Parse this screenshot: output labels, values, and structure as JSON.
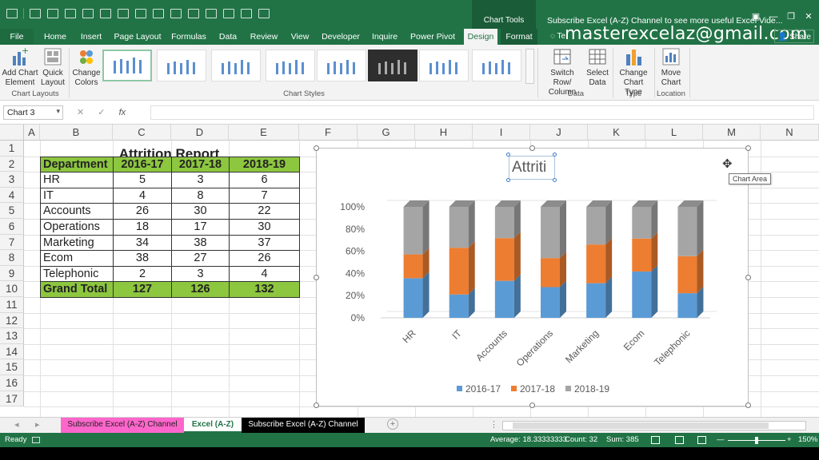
{
  "titlebar": {
    "context_group": "Chart Tools",
    "window_title": "Subscribe Excel (A-Z) Channel to see more useful Excel Vide...",
    "controls": [
      "restore-ribbon",
      "minimize",
      "maximize",
      "close"
    ]
  },
  "tabs": [
    "File",
    "Home",
    "Insert",
    "Page Layout",
    "Formulas",
    "Data",
    "Review",
    "View",
    "Developer",
    "Inquire",
    "Power Pivot",
    "Design",
    "Format"
  ],
  "active_tab": "Design",
  "tell_me": "Te",
  "watermark_email": "masterexcelaz@gmail.com",
  "share": "Share",
  "ribbon": {
    "add_chart_element": "Add Chart Element",
    "quick_layout": "Quick Layout",
    "change_colors": "Change Colors",
    "switch_row_col": "Switch Row/ Column",
    "select_data": "Select Data",
    "change_chart_type": "Change Chart Type",
    "move_chart": "Move Chart",
    "groups": {
      "chart_layouts": "Chart Layouts",
      "chart_styles": "Chart Styles",
      "data": "Data",
      "type": "Type",
      "location": "Location"
    }
  },
  "formula_bar": {
    "name_box": "Chart 3",
    "fx": "fx",
    "cancel": "✕",
    "enter": "✓",
    "value": ""
  },
  "columns": [
    "A",
    "B",
    "C",
    "D",
    "E",
    "F",
    "G",
    "H",
    "I",
    "J",
    "K",
    "L",
    "M",
    "N"
  ],
  "rows": [
    "1",
    "2",
    "3",
    "4",
    "5",
    "6",
    "7",
    "8",
    "9",
    "10",
    "11",
    "12",
    "13",
    "14",
    "15",
    "16",
    "17"
  ],
  "report": {
    "title": "Attrition Report",
    "headers": [
      "Department",
      "2016-17",
      "2017-18",
      "2018-19"
    ],
    "rows": [
      {
        "dept": "HR",
        "y1": "5",
        "y2": "3",
        "y3": "6"
      },
      {
        "dept": "IT",
        "y1": "4",
        "y2": "8",
        "y3": "7"
      },
      {
        "dept": "Accounts",
        "y1": "26",
        "y2": "30",
        "y3": "22"
      },
      {
        "dept": "Operations",
        "y1": "18",
        "y2": "17",
        "y3": "30"
      },
      {
        "dept": "Marketing",
        "y1": "34",
        "y2": "38",
        "y3": "37"
      },
      {
        "dept": "Ecom",
        "y1": "38",
        "y2": "27",
        "y3": "26"
      },
      {
        "dept": "Telephonic",
        "y1": "2",
        "y2": "3",
        "y3": "4"
      }
    ],
    "total": {
      "label": "Grand Total",
      "y1": "127",
      "y2": "126",
      "y3": "132"
    }
  },
  "chart_data": {
    "type": "bar",
    "stacking": "percent",
    "style": "3d-stacked-column",
    "title": "Attriti",
    "categories": [
      "HR",
      "IT",
      "Accounts",
      "Operations",
      "Marketing",
      "Ecom",
      "Telephonic"
    ],
    "series": [
      {
        "name": "2016-17",
        "values": [
          5,
          4,
          26,
          18,
          34,
          38,
          2
        ],
        "color": "#5b9bd5"
      },
      {
        "name": "2017-18",
        "values": [
          3,
          8,
          30,
          17,
          38,
          27,
          3
        ],
        "color": "#ed7d31"
      },
      {
        "name": "2018-19",
        "values": [
          6,
          7,
          22,
          30,
          37,
          26,
          4
        ],
        "color": "#a5a5a5"
      }
    ],
    "y_ticks": [
      "0%",
      "20%",
      "40%",
      "60%",
      "80%",
      "100%"
    ],
    "ylim": [
      0,
      100
    ],
    "legend": "bottom",
    "grid": false
  },
  "chart_tooltip": "Chart Area",
  "sheet_tabs": [
    {
      "label": "Subscribe Excel (A-Z) Channel",
      "bg": "#ff66cc",
      "fg": "#222"
    },
    {
      "label": "Excel (A-Z)",
      "bg": "#ffffff",
      "fg": "#217346"
    },
    {
      "label": "Subscribe Excel (A-Z) Channel",
      "bg": "#000000",
      "fg": "#ffffff"
    }
  ],
  "status": {
    "ready": "Ready",
    "average": "Average: 18.33333333",
    "count": "Count: 32",
    "sum": "Sum: 385",
    "zoom": "150%"
  },
  "colors": {
    "excel_green": "#217346",
    "header_green": "#8dc63f"
  }
}
